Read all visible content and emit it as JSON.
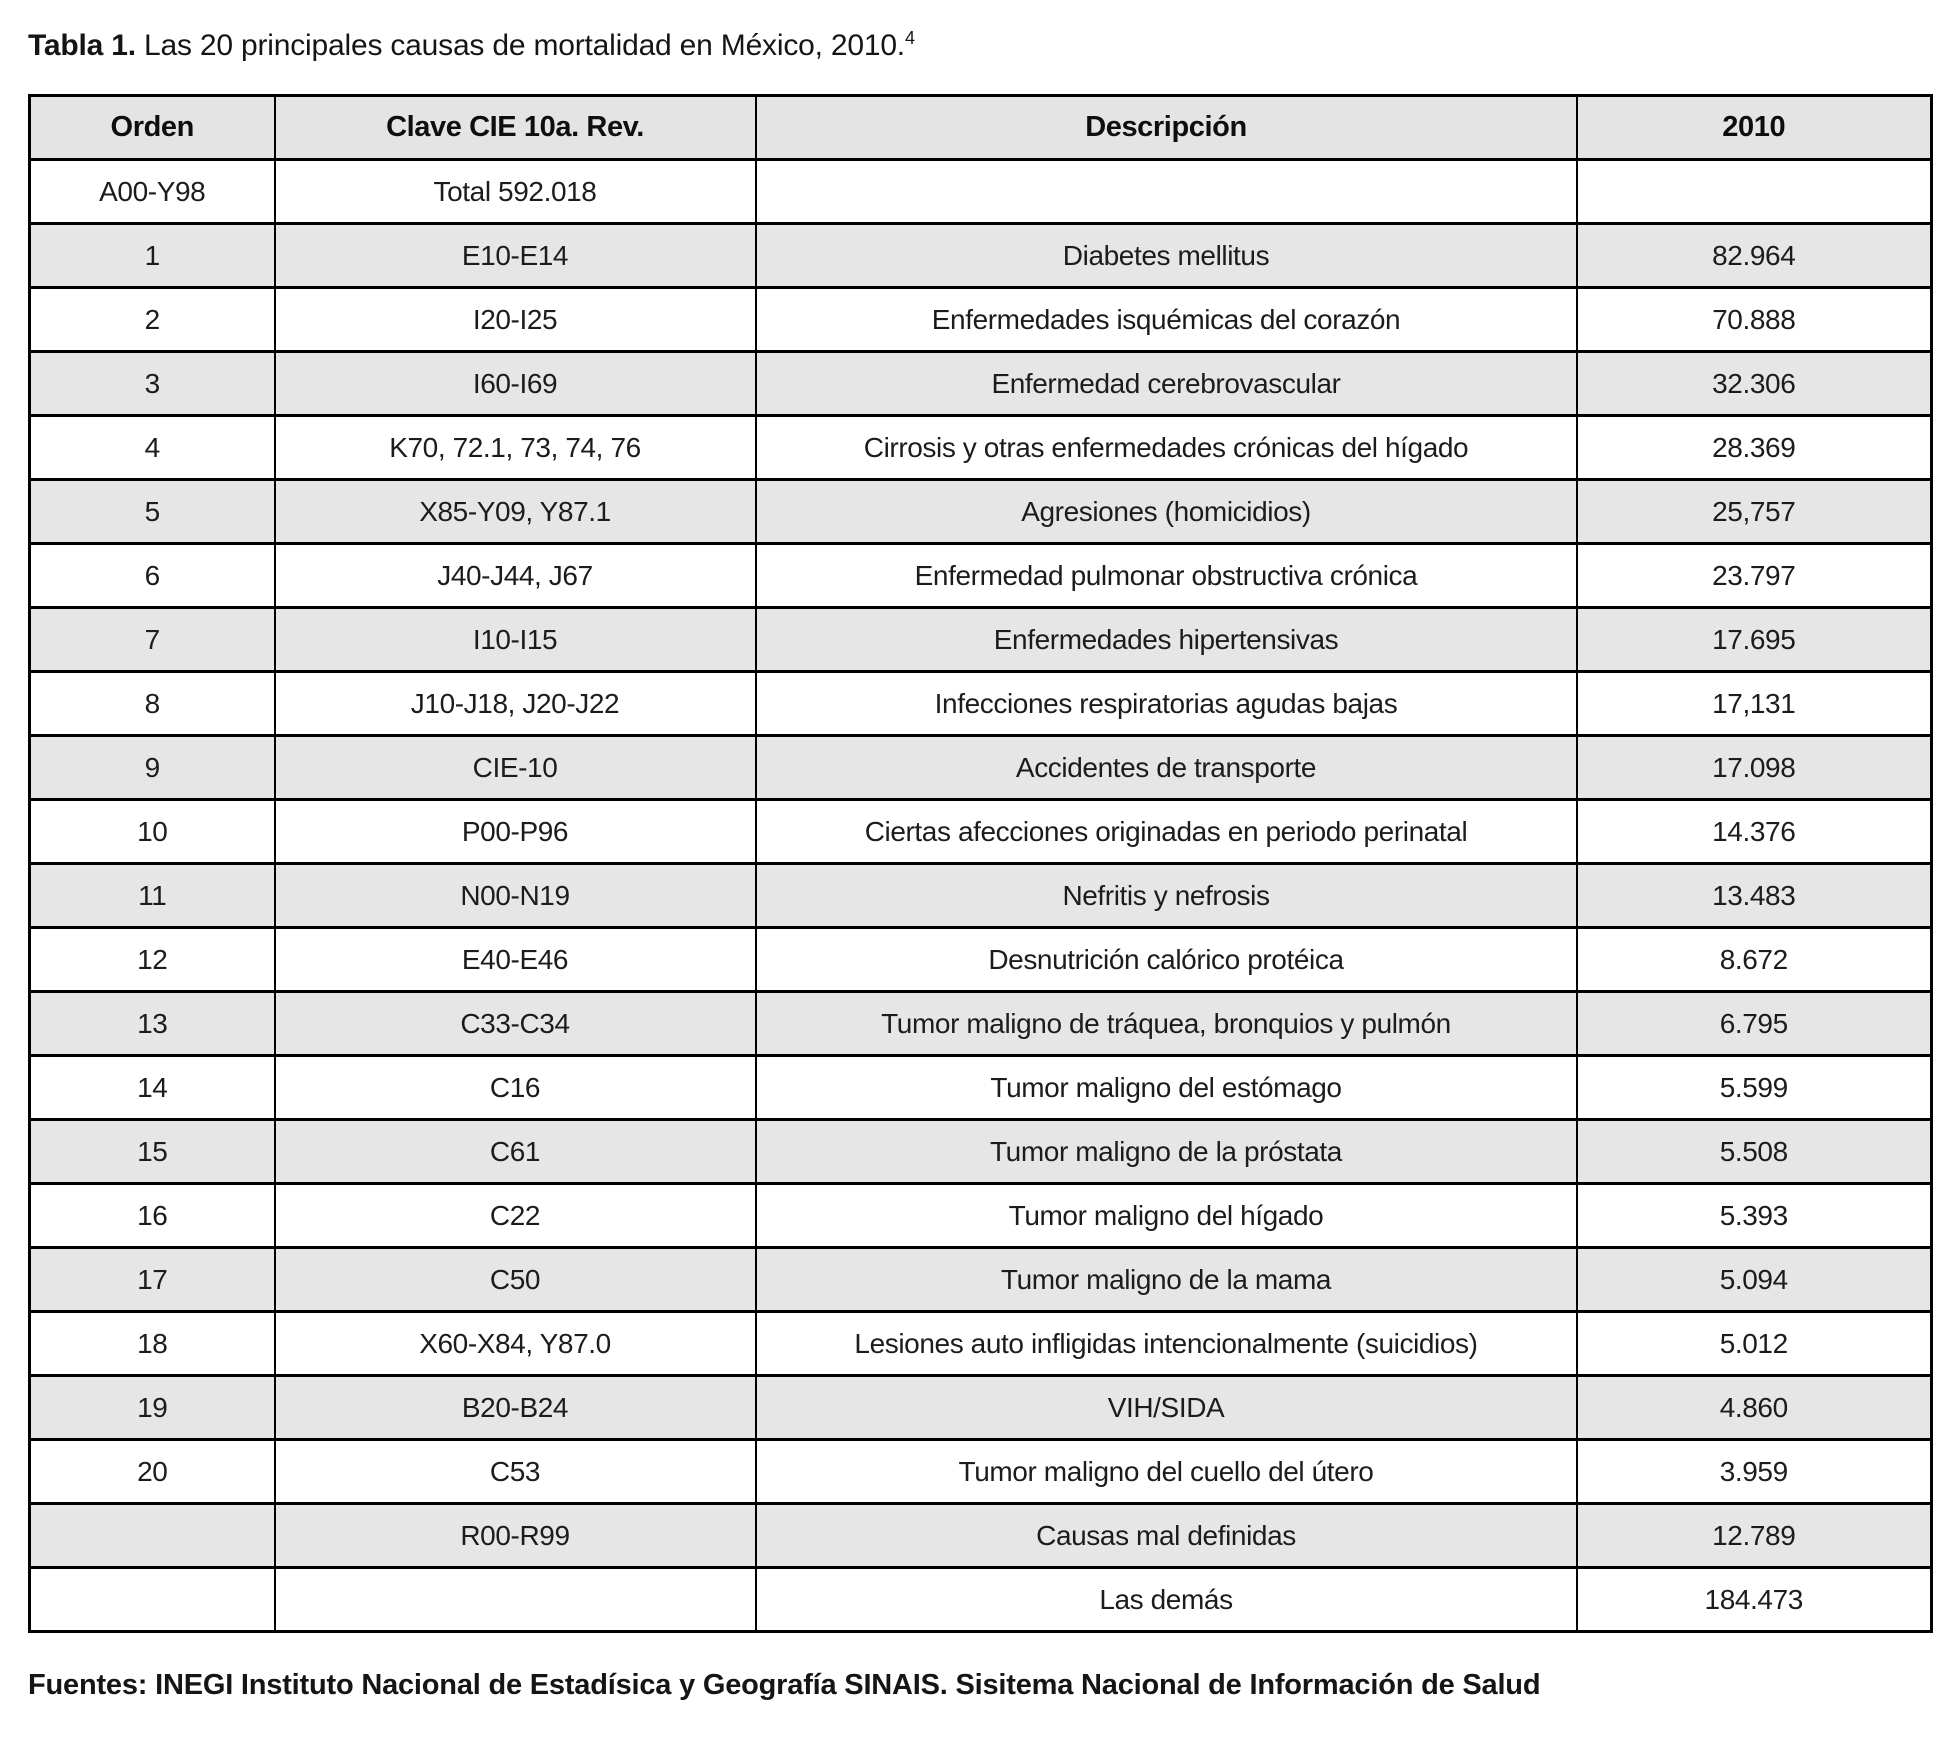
{
  "title": {
    "prefix": "Tabla 1.",
    "text": " Las 20 principales causas de mortalidad en México, 2010.",
    "superscript": "4"
  },
  "table": {
    "headers": [
      "Orden",
      "Clave CIE 10a. Rev.",
      "Descripción",
      "2010"
    ],
    "rows": [
      {
        "orden": "A00-Y98",
        "clave": "Total 592.018",
        "descripcion": "",
        "value": "",
        "shaded": false
      },
      {
        "orden": "1",
        "clave": "E10-E14",
        "descripcion": "Diabetes mellitus",
        "value": "82.964",
        "shaded": true
      },
      {
        "orden": "2",
        "clave": "I20-I25",
        "descripcion": "Enfermedades isquémicas del corazón",
        "value": "70.888",
        "shaded": false
      },
      {
        "orden": "3",
        "clave": "I60-I69",
        "descripcion": "Enfermedad cerebrovascular",
        "value": "32.306",
        "shaded": true
      },
      {
        "orden": "4",
        "clave": "K70, 72.1, 73, 74, 76",
        "descripcion": "Cirrosis y otras enfermedades crónicas del hígado",
        "value": "28.369",
        "shaded": false
      },
      {
        "orden": "5",
        "clave": "X85-Y09, Y87.1",
        "descripcion": "Agresiones (homicidios)",
        "value": "25,757",
        "shaded": true
      },
      {
        "orden": "6",
        "clave": "J40-J44, J67",
        "descripcion": "Enfermedad pulmonar obstructiva crónica",
        "value": "23.797",
        "shaded": false
      },
      {
        "orden": "7",
        "clave": "I10-I15",
        "descripcion": "Enfermedades hipertensivas",
        "value": "17.695",
        "shaded": true
      },
      {
        "orden": "8",
        "clave": "J10-J18, J20-J22",
        "descripcion": "Infecciones respiratorias agudas bajas",
        "value": "17,131",
        "shaded": false
      },
      {
        "orden": "9",
        "clave": "CIE-10",
        "descripcion": "Accidentes de transporte",
        "value": "17.098",
        "shaded": true
      },
      {
        "orden": "10",
        "clave": "P00-P96",
        "descripcion": "Ciertas afecciones originadas en periodo perinatal",
        "value": "14.376",
        "shaded": false
      },
      {
        "orden": "11",
        "clave": "N00-N19",
        "descripcion": "Nefritis y nefrosis",
        "value": "13.483",
        "shaded": true
      },
      {
        "orden": "12",
        "clave": "E40-E46",
        "descripcion": "Desnutrición calórico protéica",
        "value": "8.672",
        "shaded": false
      },
      {
        "orden": "13",
        "clave": "C33-C34",
        "descripcion": "Tumor maligno de tráquea, bronquios y pulmón",
        "value": "6.795",
        "shaded": true
      },
      {
        "orden": "14",
        "clave": "C16",
        "descripcion": "Tumor maligno del estómago",
        "value": "5.599",
        "shaded": false
      },
      {
        "orden": "15",
        "clave": "C61",
        "descripcion": "Tumor maligno de la próstata",
        "value": "5.508",
        "shaded": true
      },
      {
        "orden": "16",
        "clave": "C22",
        "descripcion": "Tumor maligno del hígado",
        "value": "5.393",
        "shaded": false
      },
      {
        "orden": "17",
        "clave": "C50",
        "descripcion": "Tumor maligno de la mama",
        "value": "5.094",
        "shaded": true
      },
      {
        "orden": "18",
        "clave": "X60-X84, Y87.0",
        "descripcion": "Lesiones auto infligidas intencionalmente (suicidios)",
        "value": "5.012",
        "shaded": false
      },
      {
        "orden": "19",
        "clave": "B20-B24",
        "descripcion": "VIH/SIDA",
        "value": "4.860",
        "shaded": true
      },
      {
        "orden": "20",
        "clave": "C53",
        "descripcion": "Tumor maligno del cuello del útero",
        "value": "3.959",
        "shaded": false
      },
      {
        "orden": "",
        "clave": "R00-R99",
        "descripcion": "Causas mal definidas",
        "value": "12.789",
        "shaded": true
      },
      {
        "orden": "",
        "clave": "",
        "descripcion": "Las demás",
        "value": "184.473",
        "shaded": false
      }
    ]
  },
  "footer": "Fuentes: INEGI Instituto Nacional de Estadísica y Geografía SINAIS. Sisitema Nacional de Información de Salud",
  "colors": {
    "row_shade": "#e6e6e6",
    "header_shade": "#e4e4e4",
    "border": "#000000"
  }
}
